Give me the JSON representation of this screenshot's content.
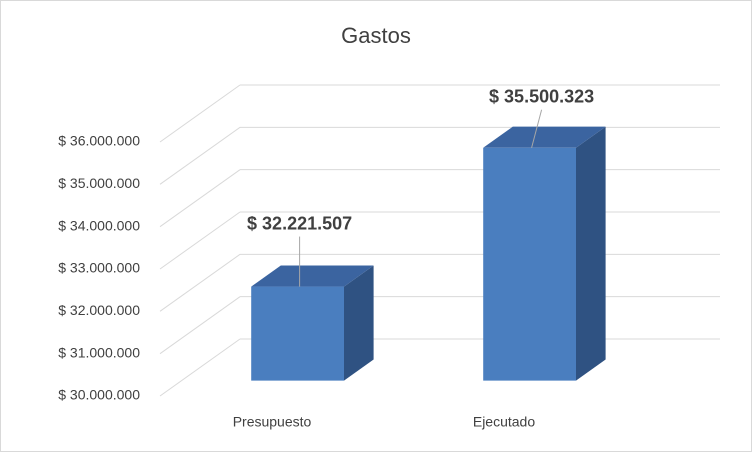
{
  "chart_data": {
    "type": "bar3d",
    "title": "Gastos",
    "categories": [
      "Presupuesto",
      "Ejecutado"
    ],
    "values": [
      32221507,
      35500323
    ],
    "value_labels": [
      "$ 32.221.507",
      "$ 35.500.323"
    ],
    "color": "#4a7ebf",
    "ylim": [
      30000000,
      36000000
    ],
    "yticks": [
      {
        "value": 30000000,
        "label": "$ 30.000.000"
      },
      {
        "value": 31000000,
        "label": "$ 31.000.000"
      },
      {
        "value": 32000000,
        "label": "$ 32.000.000"
      },
      {
        "value": 33000000,
        "label": "$ 33.000.000"
      },
      {
        "value": 34000000,
        "label": "$ 34.000.000"
      },
      {
        "value": 35000000,
        "label": "$ 35.000.000"
      },
      {
        "value": 36000000,
        "label": "$ 36.000.000"
      }
    ],
    "grid": true
  }
}
